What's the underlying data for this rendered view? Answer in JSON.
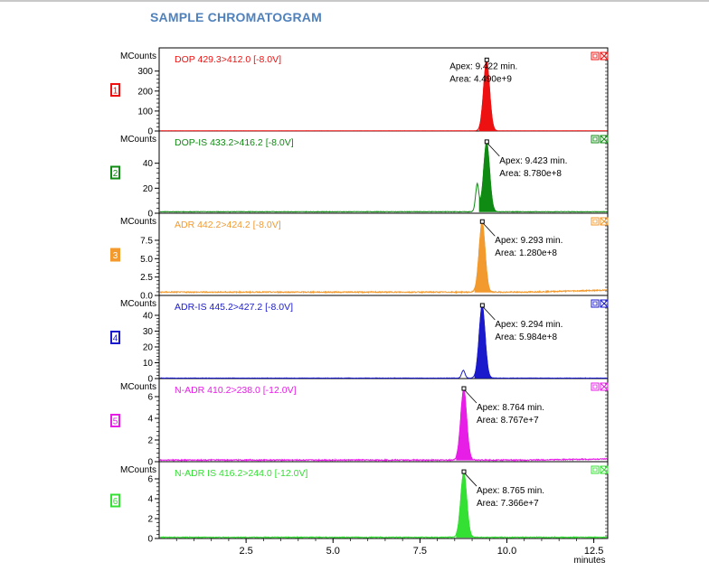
{
  "page_title": "SAMPLE CHROMATOGRAM",
  "chart_data": {
    "type": "line",
    "x_unit_label": "minutes",
    "x_ticks": [
      2.5,
      5.0,
      7.5,
      10.0,
      12.5
    ],
    "x_tick_labels": [
      "2.5",
      "5.0",
      "7.5",
      "10.0",
      "12.5"
    ],
    "xlim": [
      0.0,
      12.9
    ],
    "y_unit_label": "MCounts",
    "panels": [
      {
        "index": "1",
        "channel": "DOP 429.3>412.0 [-8.0V]",
        "color": "#ee1111",
        "y_ticks": [
          0,
          100,
          200,
          300
        ],
        "y_tick_labels": [
          "0",
          "100",
          "200",
          "300"
        ],
        "ylim": [
          0,
          380
        ],
        "peaks": [
          {
            "rt": 9.422,
            "height": 355,
            "width": 0.09
          }
        ],
        "annotation_lines": [
          "Apex: 9.422 min.",
          "Area: 4.490e+9"
        ],
        "baseline": 1,
        "noise": 0.4
      },
      {
        "index": "2",
        "channel": "DOP-IS 433.2>416.2 [-8.0V]",
        "color": "#0f8a12",
        "y_ticks": [
          0,
          20,
          40
        ],
        "y_tick_labels": [
          "0",
          "20",
          "40"
        ],
        "ylim": [
          0,
          60
        ],
        "peaks": [
          {
            "rt": 9.423,
            "height": 56,
            "width": 0.09
          },
          {
            "rt": 9.15,
            "height": 22,
            "width": 0.05
          }
        ],
        "annotation_lines": [
          "Apex: 9.423 min.",
          "Area: 8.780e+8"
        ],
        "baseline": 1.2,
        "noise": 0.4
      },
      {
        "index": "3",
        "channel": "ADR 442.2>424.2 [-8.0V]",
        "color": "#f39a2e",
        "y_ticks": [
          0.0,
          2.5,
          5.0,
          7.5
        ],
        "y_tick_labels": [
          "0.0",
          "2.5",
          "5.0",
          "7.5"
        ],
        "ylim": [
          0,
          10.2
        ],
        "peaks": [
          {
            "rt": 9.293,
            "height": 9.6,
            "width": 0.09
          }
        ],
        "annotation_lines": [
          "Apex: 9.293 min.",
          "Area: 1.280e+8"
        ],
        "baseline": 0.45,
        "noise": 0.15
      },
      {
        "index": "4",
        "channel": "ADR-IS 445.2>427.2 [-8.0V]",
        "color": "#1a1acc",
        "y_ticks": [
          0,
          10,
          20,
          30,
          40
        ],
        "y_tick_labels": [
          "0",
          "10",
          "20",
          "30",
          "40"
        ],
        "ylim": [
          0,
          48
        ],
        "peaks": [
          {
            "rt": 9.294,
            "height": 46,
            "width": 0.09
          },
          {
            "rt": 8.75,
            "height": 5,
            "width": 0.05
          }
        ],
        "annotation_lines": [
          "Apex: 9.294 min.",
          "Area: 5.984e+8"
        ],
        "baseline": 0.3,
        "noise": 0.2
      },
      {
        "index": "5",
        "channel": "N-ADR 410.2>238.0 [-12.0V]",
        "color": "#e61ee6",
        "y_ticks": [
          0,
          2,
          4,
          6
        ],
        "y_tick_labels": [
          "0",
          "2",
          "4",
          "6"
        ],
        "ylim": [
          0,
          7.0
        ],
        "peaks": [
          {
            "rt": 8.764,
            "height": 6.6,
            "width": 0.09
          }
        ],
        "annotation_lines": [
          "Apex: 8.764 min.",
          "Area: 8.767e+7"
        ],
        "baseline": 0.15,
        "noise": 0.1
      },
      {
        "index": "6",
        "channel": "N-ADR IS 416.2>244.0 [-12.0V]",
        "color": "#33e033",
        "y_ticks": [
          0,
          2,
          4,
          6
        ],
        "y_tick_labels": [
          "0",
          "2",
          "4",
          "6"
        ],
        "ylim": [
          0,
          7.0
        ],
        "peaks": [
          {
            "rt": 8.765,
            "height": 6.6,
            "width": 0.09
          }
        ],
        "annotation_lines": [
          "Apex: 8.765 min.",
          "Area: 7.366e+7"
        ],
        "baseline": 0.12,
        "noise": 0.08
      }
    ]
  }
}
